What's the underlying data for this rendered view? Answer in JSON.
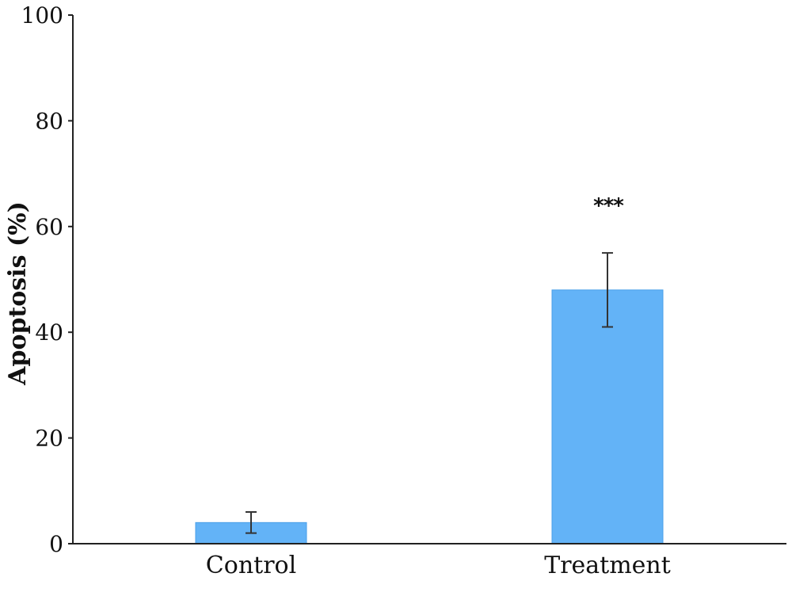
{
  "chart_data": {
    "type": "bar",
    "title": "",
    "xlabel": "",
    "ylabel": "Apoptosis (%)",
    "ylim": [
      0,
      100
    ],
    "yticks": [
      "0",
      "20",
      "40",
      "60",
      "80",
      "100"
    ],
    "categories": [
      "Control",
      "Treatment"
    ],
    "values": [
      4,
      48
    ],
    "error": [
      2,
      7
    ],
    "significance": [
      "",
      "***"
    ],
    "grid": false,
    "colors": {
      "bar": "#63b3f7",
      "bar_edge": "#4a9fe8"
    }
  }
}
